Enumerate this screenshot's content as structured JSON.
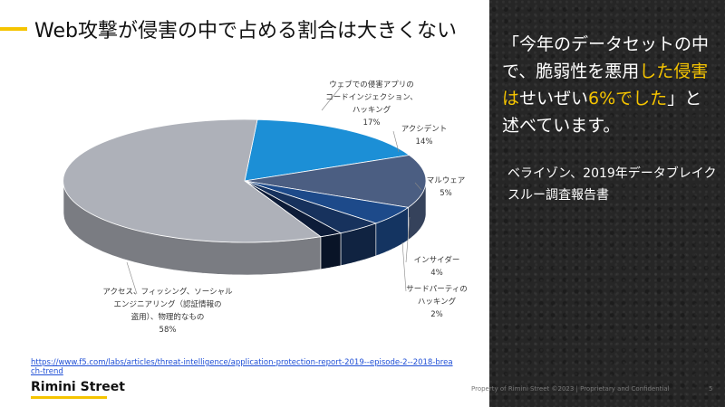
{
  "slide": {
    "title": "Web攻撃が侵害の中で占める割合は大きくない",
    "quote_parts": [
      "「今年のデータセットの中で、脆弱性を悪用",
      "した侵害は",
      "せいぜい",
      "6%でした",
      "」と述べています。"
    ],
    "source": "ベライゾン、2019年データブレイクスルー調査報告書",
    "link": "https://www.f5.com/labs/articles/threat-intelligence/application-protection-report-2019--episode-2--2018-breach-trend",
    "logo": "Rimini Street",
    "footer": "Property of Rimini Street ©2023 | Proprietary and Confidential",
    "page": "5"
  },
  "colors": {
    "accent": "#f5c400",
    "dark_panel": "#262626",
    "link": "#1f4fd6"
  },
  "chart_data": {
    "type": "pie",
    "style": "3d-exploded",
    "slices": [
      {
        "label_lines": [
          "ウェブでの侵害アプリの",
          "コードインジェクション、",
          "ハッキング"
        ],
        "value_text": "17%",
        "value": 17,
        "color": "#1c8fd6"
      },
      {
        "label_lines": [
          "アクシデント"
        ],
        "value_text": "14%",
        "value": 14,
        "color": "#4b5e82"
      },
      {
        "label_lines": [
          "マルウェア"
        ],
        "value_text": "5%",
        "value": 5,
        "color": "#1d4a8a"
      },
      {
        "label_lines": [
          "インサイダー"
        ],
        "value_text": "4%",
        "value": 4,
        "color": "#17325d"
      },
      {
        "label_lines": [
          "サードパーティの",
          "ハッキング"
        ],
        "value_text": "2%",
        "value": 2,
        "color": "#0d1c38"
      },
      {
        "label_lines": [
          "アクセス、フィッシング、ソーシャル",
          "エンジニアリング（認証情報の",
          "盗用）、物理的なもの"
        ],
        "value_text": "58%",
        "value": 58,
        "color": "#aeb1b9"
      }
    ]
  }
}
